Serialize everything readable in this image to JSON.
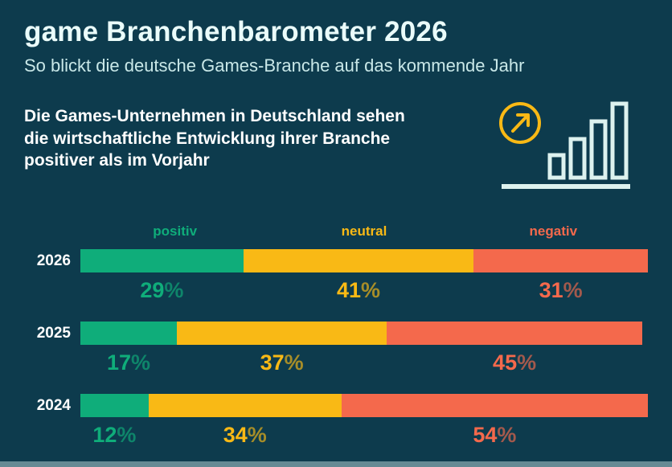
{
  "header": {
    "title": "game Branchenbarometer 2026",
    "subtitle": "So blickt die deutsche Games-Branche auf das kommende Jahr",
    "description": "Die Games-Unternehmen in Deutschland sehen die wirtschaftliche Entwicklung ihrer Branche positiver als im Vorjahr"
  },
  "icons": {
    "arrow_circle": "arrow-up-right-in-circle-icon",
    "bars": "rising-bar-chart-icon"
  },
  "colors": {
    "background": "#0d3b4d",
    "title": "#eafcfa",
    "subtitle": "#c9e8e8",
    "text": "#ffffff",
    "positive": "#0fad7a",
    "neutral": "#f9b915",
    "negative": "#f4694c",
    "icon_stroke": "#ddf2ef",
    "accent_circle": "#f9b915"
  },
  "chart_data": {
    "type": "bar",
    "variant": "horizontal-stacked",
    "categories": [
      "2026",
      "2025",
      "2024"
    ],
    "series": [
      {
        "name": "positiv",
        "color": "#0fad7a",
        "values": [
          29,
          17,
          12
        ]
      },
      {
        "name": "neutral",
        "color": "#f9b915",
        "values": [
          41,
          37,
          34
        ]
      },
      {
        "name": "negativ",
        "color": "#f4694c",
        "values": [
          31,
          45,
          54
        ]
      }
    ],
    "unit": "%",
    "xlim": [
      0,
      100
    ],
    "grid": false,
    "legend_position": "top"
  }
}
